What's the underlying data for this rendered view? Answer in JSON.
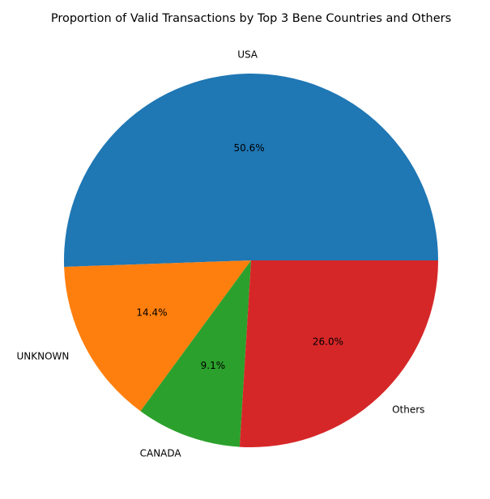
{
  "chart_data": {
    "type": "pie",
    "title": "Proportion of Valid Transactions by Top 3 Bene Countries and Others",
    "labels": [
      "USA",
      "UNKNOWN",
      "CANADA",
      "Others"
    ],
    "values": [
      50.6,
      14.4,
      9.1,
      26.0
    ],
    "percent_labels": [
      "50.6%",
      "14.4%",
      "9.1%",
      "26.0%"
    ],
    "colors": [
      "#1f77b4",
      "#ff7f0e",
      "#2ca02c",
      "#d62728"
    ],
    "start_angle": 0,
    "direction": "counterclockwise"
  }
}
